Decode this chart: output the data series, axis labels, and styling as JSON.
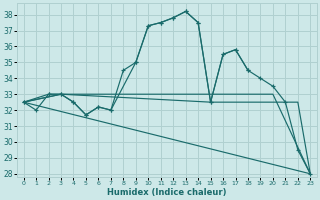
{
  "bg_color": "#cde8e8",
  "grid_color": "#b0d0d0",
  "line_color": "#1a6b6b",
  "xlabel": "Humidex (Indice chaleur)",
  "xlim": [
    -0.5,
    23.5
  ],
  "ylim": [
    27.8,
    38.7
  ],
  "yticks": [
    28,
    29,
    30,
    31,
    32,
    33,
    34,
    35,
    36,
    37,
    38
  ],
  "xticks": [
    0,
    1,
    2,
    3,
    4,
    5,
    6,
    7,
    8,
    9,
    10,
    11,
    12,
    13,
    14,
    15,
    16,
    17,
    18,
    19,
    20,
    21,
    22,
    23
  ],
  "lines": [
    {
      "x": [
        0,
        23
      ],
      "y": [
        32.5,
        28.0
      ],
      "marker": false
    },
    {
      "x": [
        0,
        1,
        2,
        3,
        4,
        5,
        6,
        7,
        8,
        9,
        10,
        11,
        12,
        13,
        14,
        15,
        16,
        17,
        18,
        19,
        20,
        21,
        22,
        23
      ],
      "y": [
        32.5,
        32.0,
        33.0,
        33.0,
        32.5,
        31.7,
        32.2,
        32.0,
        34.5,
        35.0,
        37.3,
        37.5,
        37.8,
        38.2,
        37.5,
        32.5,
        35.5,
        35.8,
        34.5,
        34.0,
        33.5,
        32.5,
        29.5,
        28.0
      ],
      "marker": true
    },
    {
      "x": [
        0,
        3,
        10,
        15,
        20,
        23
      ],
      "y": [
        32.5,
        33.0,
        33.0,
        33.0,
        33.0,
        28.0
      ],
      "marker": false
    },
    {
      "x": [
        0,
        3,
        15,
        19,
        22,
        23
      ],
      "y": [
        32.5,
        33.0,
        32.5,
        32.5,
        32.5,
        28.0
      ],
      "marker": false
    },
    {
      "x": [
        0,
        2,
        3,
        4,
        5,
        6,
        7,
        9,
        10,
        11,
        12,
        13,
        14,
        15,
        16,
        17,
        18
      ],
      "y": [
        32.5,
        33.0,
        33.0,
        32.5,
        31.7,
        32.2,
        32.0,
        35.0,
        37.3,
        37.5,
        37.8,
        38.2,
        37.5,
        32.5,
        35.5,
        35.8,
        34.5
      ],
      "marker": true
    }
  ]
}
